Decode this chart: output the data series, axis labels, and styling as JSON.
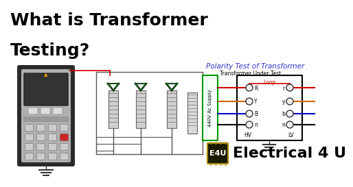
{
  "bg_color": "#ffffff",
  "title_line1": "What is Transformer",
  "title_line2": "Testing?",
  "title_color": "#000000",
  "title_fontsize": 18,
  "title_fontstyle": "bold",
  "polarity_title": "Polarity Test of Transformer",
  "polarity_title_color": "#3333cc",
  "polarity_title_fontsize": 7.5,
  "under_test_label": "Transformer Under Test",
  "under_test_fontsize": 5.5,
  "supply_label": "440V Ac Supply",
  "supply_fontsize": 5,
  "loop_label": "Loop",
  "loop_color": "#cc0000",
  "hv_label": "HV",
  "lv_label": "LV",
  "hv_terminals": [
    "R",
    "Y",
    "B",
    "n"
  ],
  "lv_terminals": [
    "r",
    "y",
    "b",
    "n"
  ],
  "wire_colors": [
    "#cc0000",
    "#cc6600",
    "#0000cc",
    "#000000"
  ],
  "brand_text": "Electrical 4 U",
  "brand_color": "#000000",
  "brand_fontsize": 16,
  "e4u_bg": "#1a1a00",
  "e4u_border": "#aa8800",
  "e4u_text": "E4U",
  "e4u_text_color": "#ffffff",
  "supply_box_color": "#009900",
  "tut_box_color": "#000000",
  "device_body_color": "#2a2a2a",
  "device_face_color": "#cccccc",
  "device_screen_color": "#333333",
  "wire_red": "#cc0000"
}
